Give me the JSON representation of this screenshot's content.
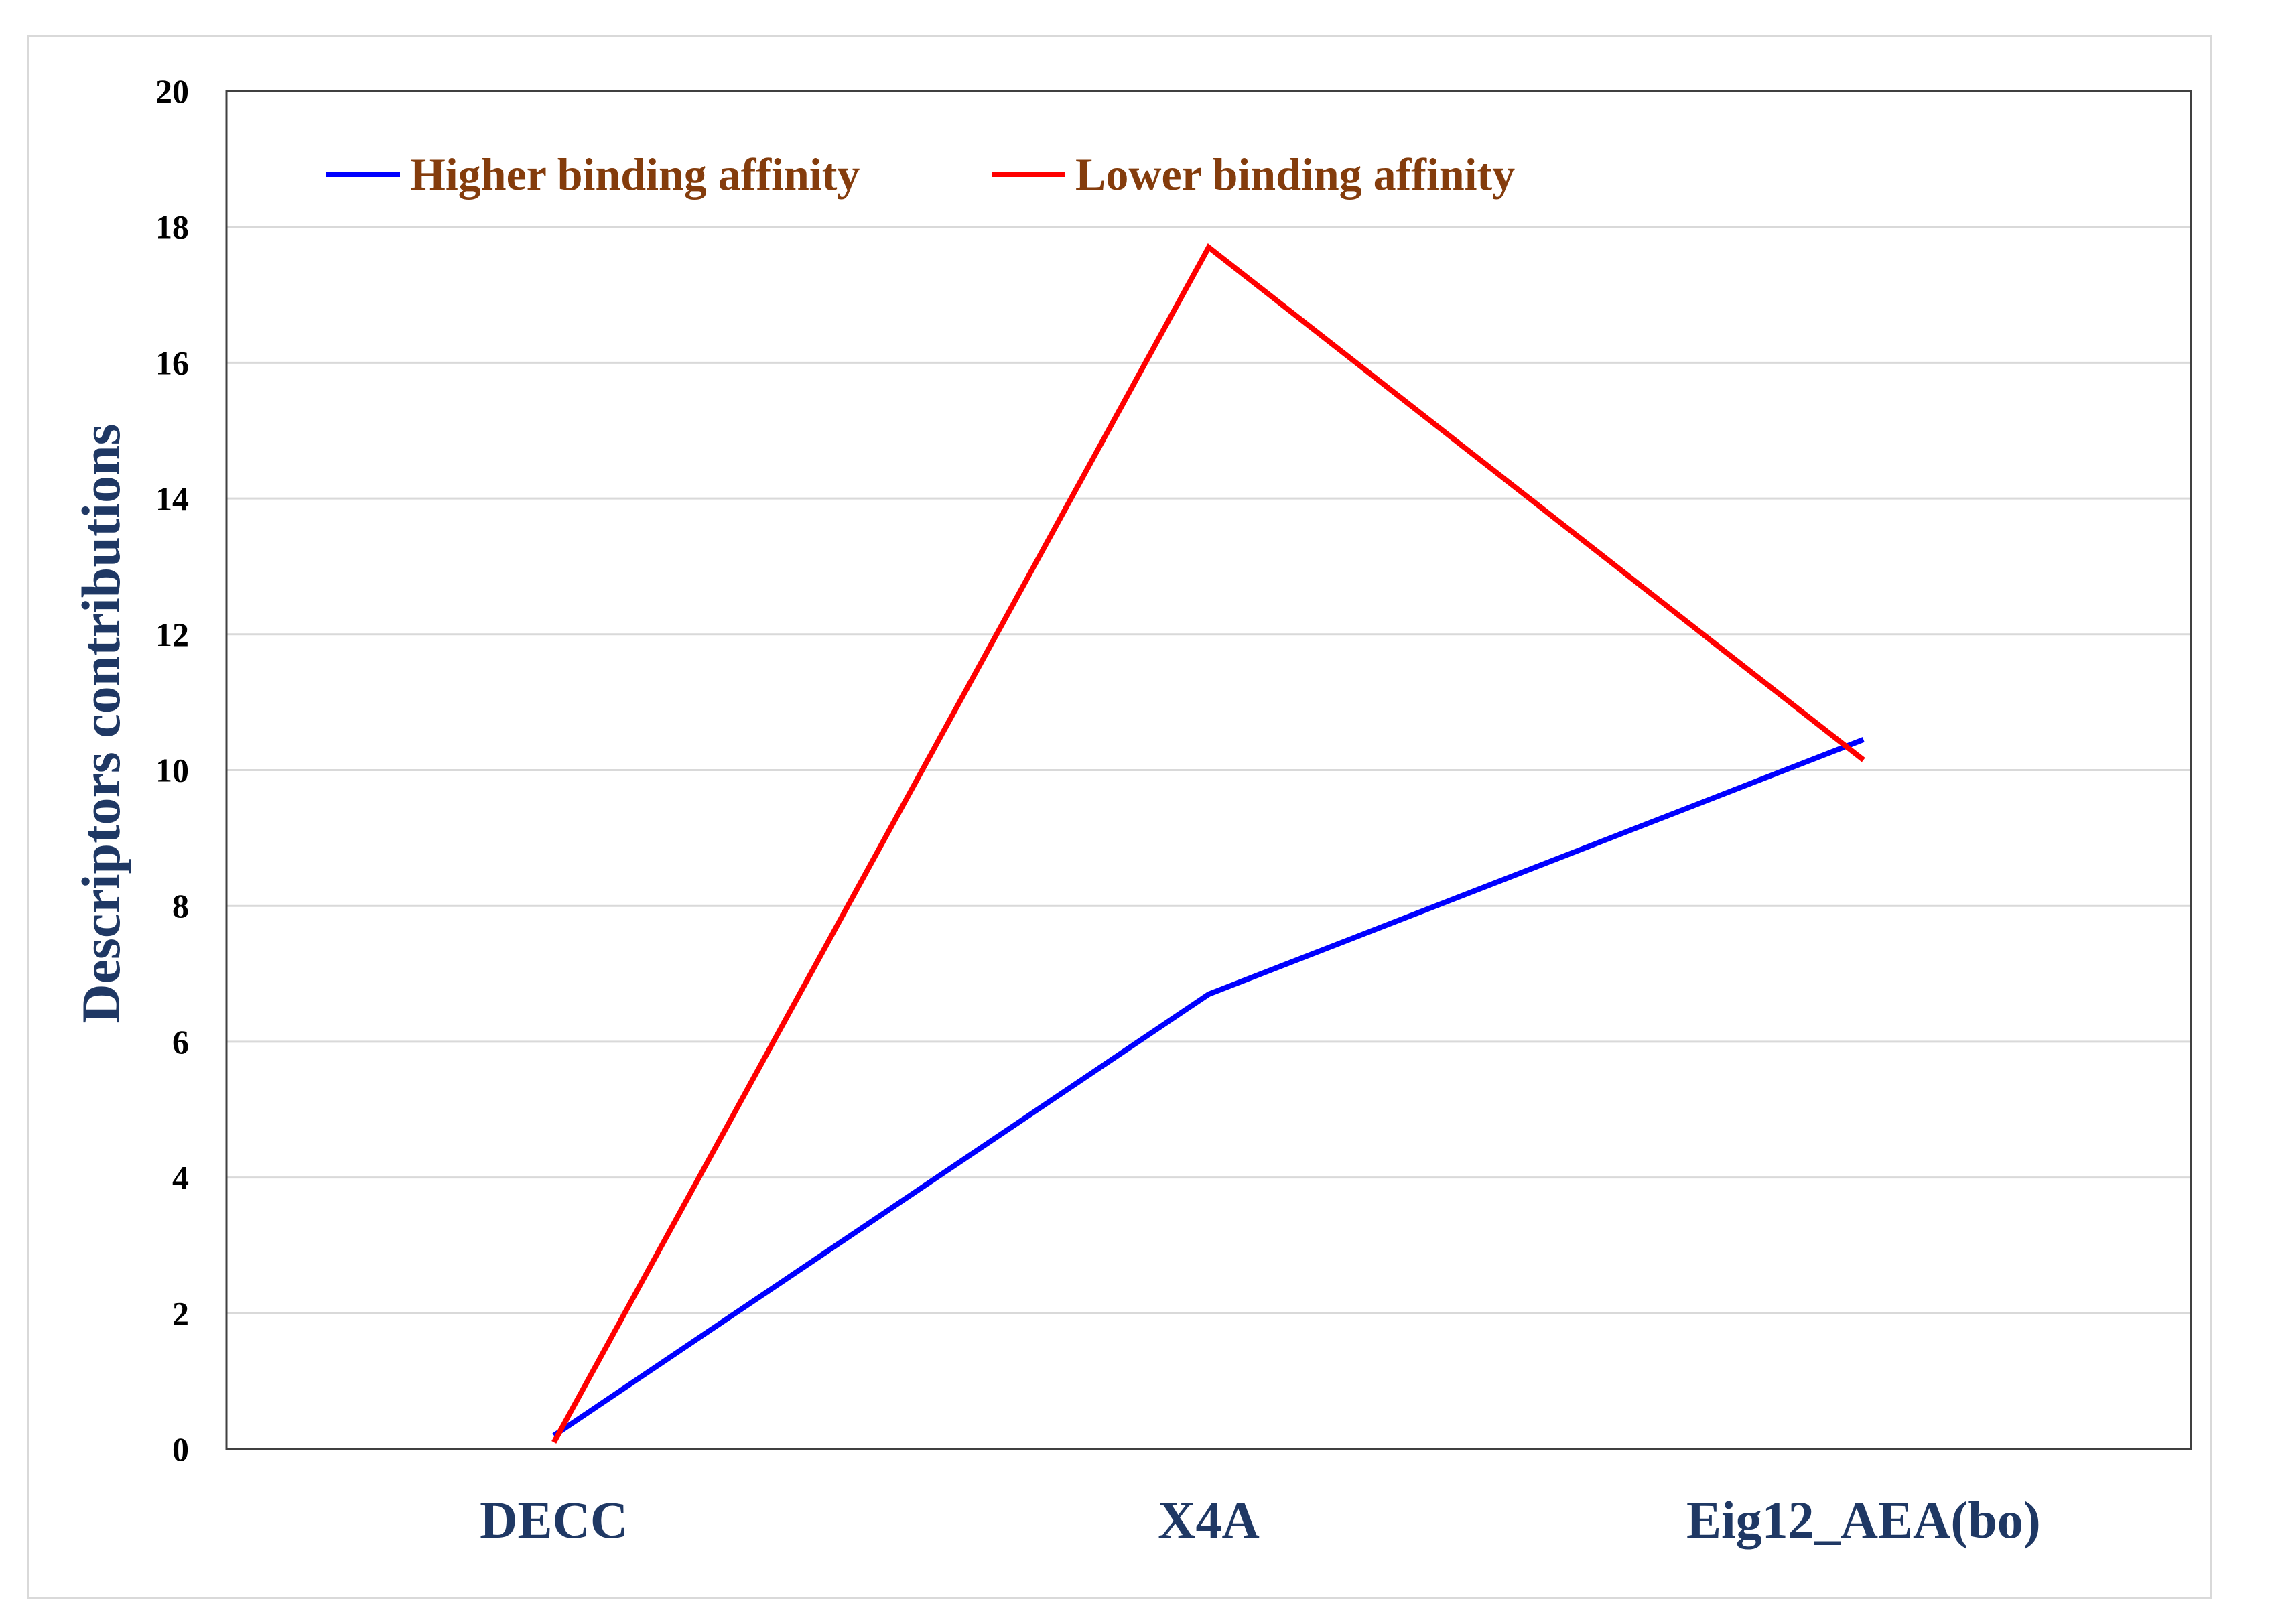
{
  "chart_data": {
    "type": "line",
    "title": "",
    "xlabel": "",
    "ylabel": "Descriptors contributions",
    "categories": [
      "DECC",
      "X4A",
      "Eig12_AEA(bo)"
    ],
    "ylim": [
      0,
      20
    ],
    "yticks": [
      0,
      2,
      4,
      6,
      8,
      10,
      12,
      14,
      16,
      18,
      20
    ],
    "grid": true,
    "legend_position": "top-left",
    "series": [
      {
        "name": "Higher binding affinity",
        "color": "#0000ff",
        "values": [
          0.2,
          6.7,
          10.45
        ]
      },
      {
        "name": "Lower binding affinity",
        "color": "#ff0000",
        "values": [
          0.1,
          17.7,
          10.15
        ]
      }
    ]
  }
}
